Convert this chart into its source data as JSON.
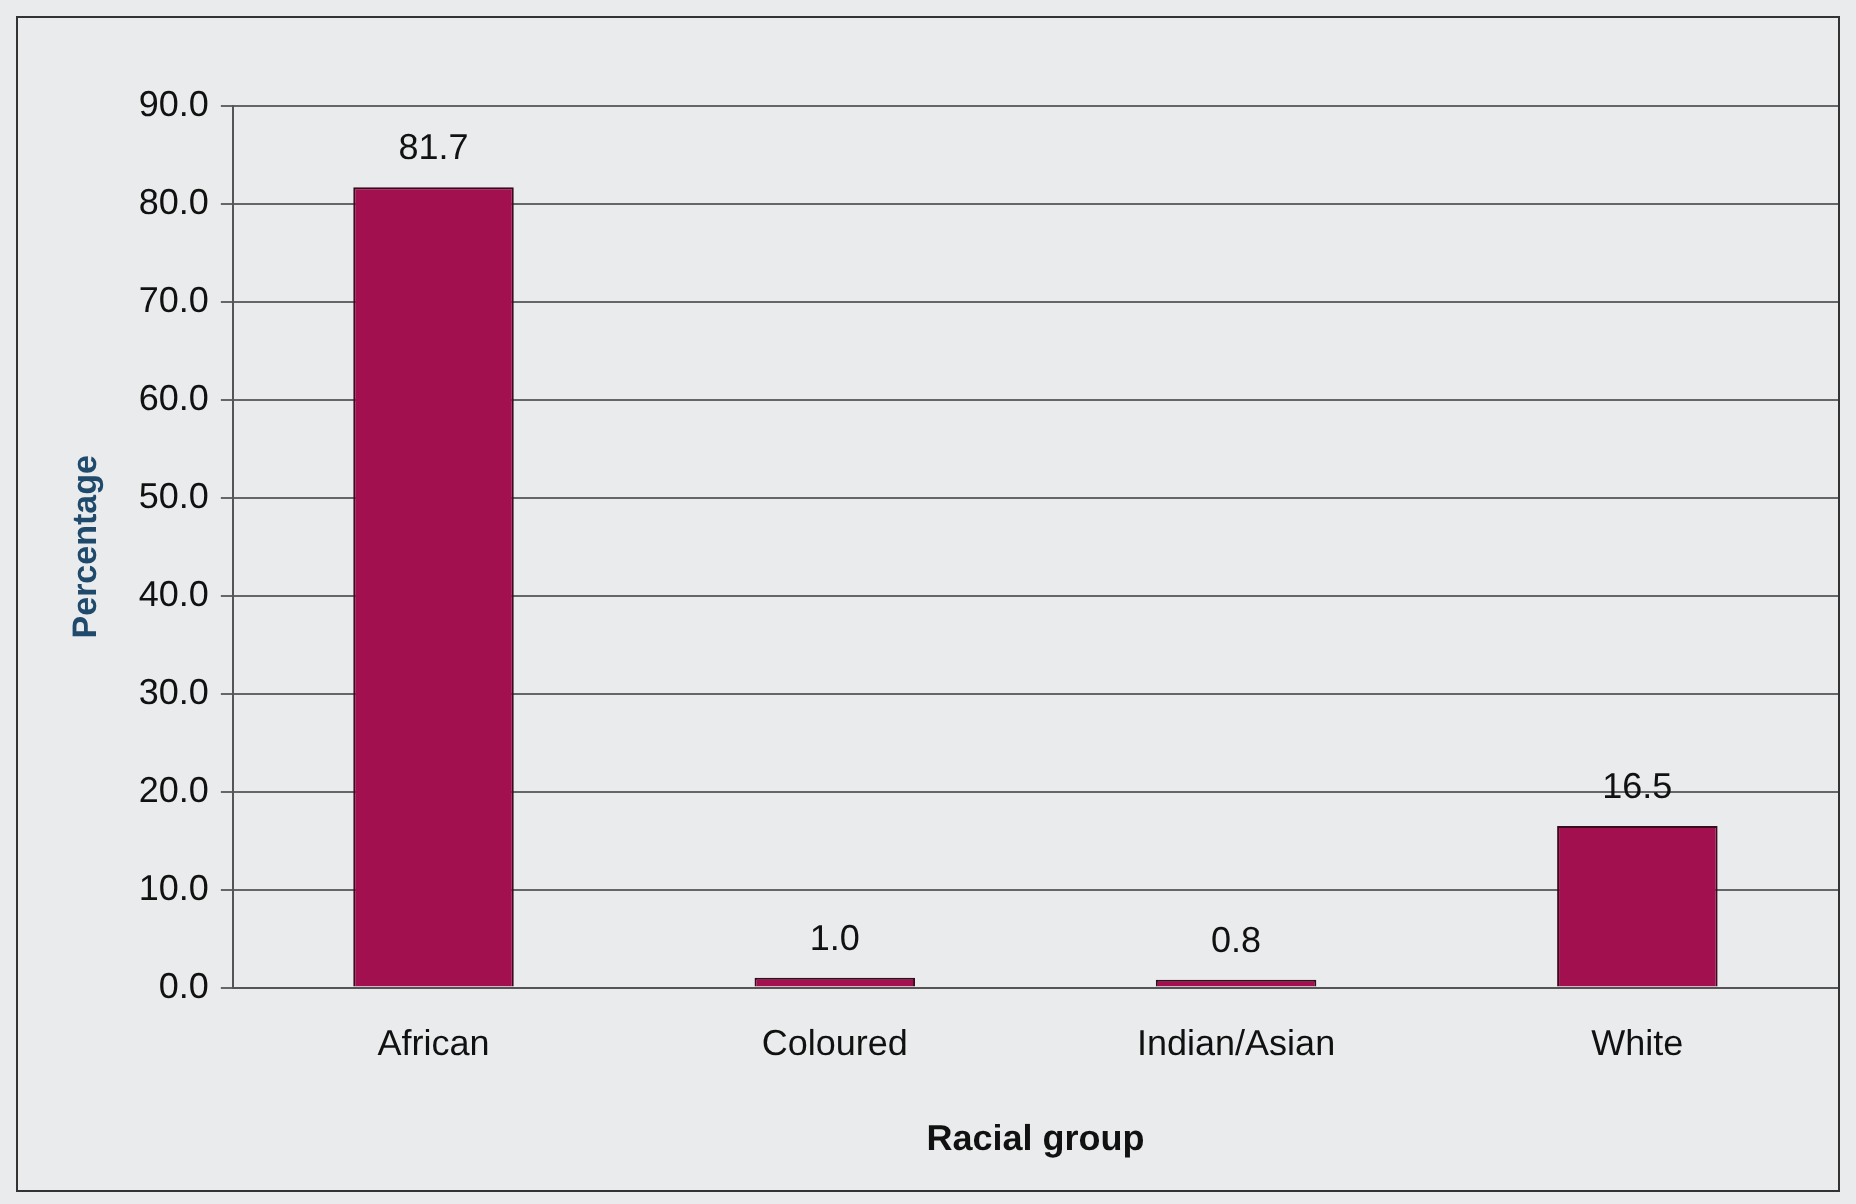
{
  "chart_data": {
    "type": "bar",
    "xlabel": "Racial group",
    "ylabel": "Percentage",
    "categories": [
      "African",
      "Coloured",
      "Indian/Asian",
      "White"
    ],
    "values": [
      81.7,
      1.0,
      0.8,
      16.5
    ],
    "color": "#a3104f",
    "value_labels": [
      "81.7",
      "1.0",
      "0.8",
      "16.5"
    ],
    "ylim": [
      0,
      90
    ],
    "yticks": [
      {
        "value": 0,
        "label": "0.0"
      },
      {
        "value": 10,
        "label": "10.0"
      },
      {
        "value": 20,
        "label": "20.0"
      },
      {
        "value": 30,
        "label": "30.0"
      },
      {
        "value": 40,
        "label": "40.0"
      },
      {
        "value": 50,
        "label": "50.0"
      },
      {
        "value": 60,
        "label": "60.0"
      },
      {
        "value": 70,
        "label": "70.0"
      },
      {
        "value": 80,
        "label": "80.0"
      },
      {
        "value": 90,
        "label": "90.0"
      }
    ],
    "grid": "y",
    "legend": false
  }
}
